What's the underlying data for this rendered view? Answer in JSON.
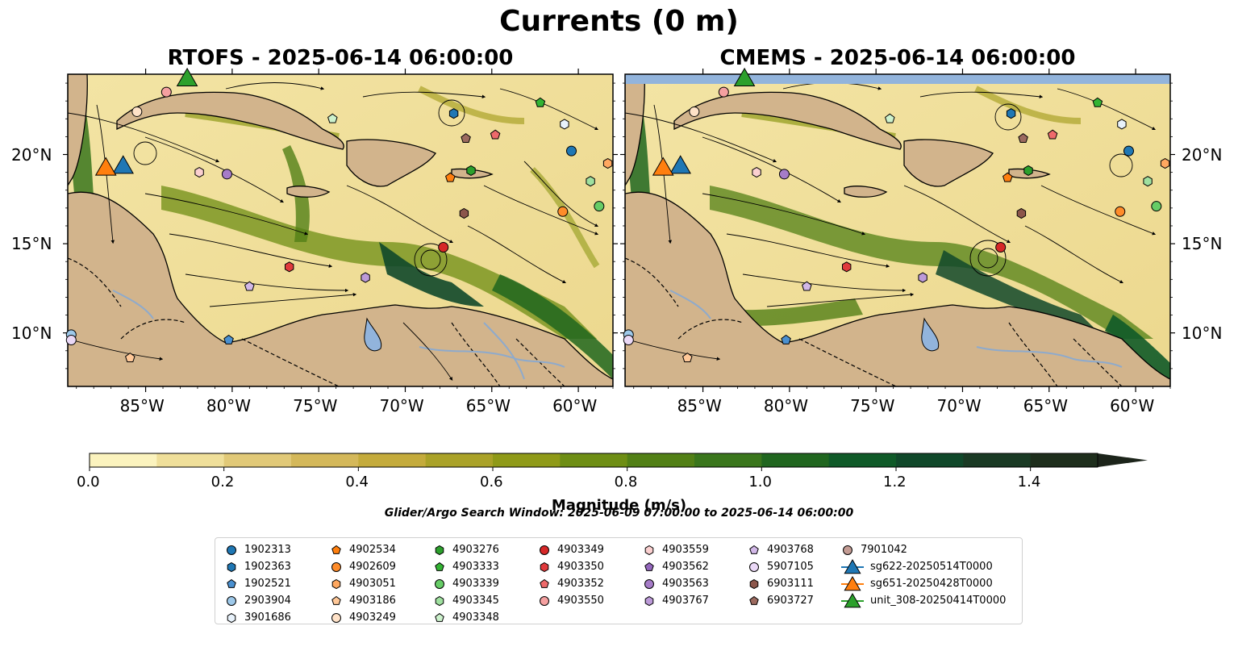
{
  "figure": {
    "title": "Currents (0 m)",
    "panels": [
      {
        "title": "RTOFS - 2025-06-14 06:00:00"
      },
      {
        "title": "CMEMS - 2025-06-14 06:00:00"
      }
    ],
    "lon_ticks": [
      "85°W",
      "80°W",
      "75°W",
      "70°W",
      "65°W",
      "60°W"
    ],
    "lat_ticks": [
      "20°N",
      "15°N",
      "10°N"
    ],
    "map_extent": {
      "lon": [
        -89.5,
        -58.0
      ],
      "lat": [
        7.0,
        24.5
      ]
    }
  },
  "colorbar": {
    "label": "Magnitude (m/s)",
    "ticks": [
      "0.0",
      "0.2",
      "0.4",
      "0.6",
      "0.8",
      "1.0",
      "1.2",
      "1.4"
    ],
    "range": [
      0.0,
      1.5
    ],
    "colors": [
      "#fbf3be",
      "#efdf9a",
      "#e1c978",
      "#d4b85a",
      "#c4ab3c",
      "#aaa228",
      "#8f9a18",
      "#6e8e14",
      "#528016",
      "#3a761c",
      "#20661f",
      "#0f5a28",
      "#10482a",
      "#1a3a24",
      "#1e2e1c"
    ]
  },
  "search_window": "Glider/Argo Search Window: 2025-06-09 07:00:00 to 2025-06-14 06:00:00",
  "legend": {
    "columns": [
      [
        {
          "label": "1902313",
          "marker": "circle",
          "color": "#1f77b4"
        },
        {
          "label": "1902363",
          "marker": "hexagon",
          "color": "#1f77b4"
        },
        {
          "label": "1902521",
          "marker": "pentagon",
          "color": "#4a90d0"
        },
        {
          "label": "2903904",
          "marker": "circle",
          "color": "#9ec9ea"
        },
        {
          "label": "3901686",
          "marker": "hexagon",
          "color": "#e8f2fb"
        }
      ],
      [
        {
          "label": "4902534",
          "marker": "pentagon",
          "color": "#ff7f0e"
        },
        {
          "label": "4902609",
          "marker": "circle",
          "color": "#ff8c2a"
        },
        {
          "label": "4903051",
          "marker": "hexagon",
          "color": "#ffa860"
        },
        {
          "label": "4903186",
          "marker": "pentagon",
          "color": "#ffc898"
        },
        {
          "label": "4903249",
          "marker": "circle",
          "color": "#ffe2c8"
        }
      ],
      [
        {
          "label": "4903276",
          "marker": "hexagon",
          "color": "#2ca02c"
        },
        {
          "label": "4903333",
          "marker": "pentagon",
          "color": "#33b433"
        },
        {
          "label": "4903339",
          "marker": "circle",
          "color": "#66cc66"
        },
        {
          "label": "4903345",
          "marker": "hexagon",
          "color": "#9fe09f"
        },
        {
          "label": "4903348",
          "marker": "pentagon",
          "color": "#cdf2cd"
        }
      ],
      [
        {
          "label": "4903349",
          "marker": "circle",
          "color": "#d62728"
        },
        {
          "label": "4903350",
          "marker": "hexagon",
          "color": "#e03a3c"
        },
        {
          "label": "4903352",
          "marker": "pentagon",
          "color": "#ee6a6b"
        },
        {
          "label": "4903550",
          "marker": "circle",
          "color": "#f5a0a0"
        }
      ],
      [
        {
          "label": "4903559",
          "marker": "hexagon",
          "color": "#fbd0d0"
        },
        {
          "label": "4903562",
          "marker": "pentagon",
          "color": "#9467bd"
        },
        {
          "label": "4903563",
          "marker": "circle",
          "color": "#a67cc8"
        },
        {
          "label": "4903767",
          "marker": "hexagon",
          "color": "#bc9ad8"
        }
      ],
      [
        {
          "label": "4903768",
          "marker": "pentagon",
          "color": "#d2b8e8"
        },
        {
          "label": "5907105",
          "marker": "circle",
          "color": "#ead8f6"
        },
        {
          "label": "6903111",
          "marker": "hexagon",
          "color": "#8c564b"
        },
        {
          "label": "6903727",
          "marker": "pentagon",
          "color": "#9c6a5f"
        }
      ],
      [
        {
          "label": "7901042",
          "marker": "circle",
          "color": "#c49c94"
        },
        {
          "label": "sg622-20250514T0000",
          "marker": "triangle",
          "color": "#1f77b4"
        },
        {
          "label": "sg651-20250428T0000",
          "marker": "triangle",
          "color": "#ff7f0e"
        },
        {
          "label": "unit_308-20250414T0000",
          "marker": "triangle",
          "color": "#2ca02c"
        }
      ]
    ]
  },
  "map_colors": {
    "land": "#d2b48c",
    "lake": "#92b4dc",
    "river": "#8eaacc",
    "no_data_band": "#92b4dc"
  },
  "markers": [
    {
      "id": "1902313",
      "lon": -60.4,
      "lat": 20.2
    },
    {
      "id": "1902363",
      "lon": -67.2,
      "lat": 22.3
    },
    {
      "id": "1902521",
      "lon": -80.2,
      "lat": 9.6
    },
    {
      "id": "2903904",
      "lon": -89.3,
      "lat": 9.9
    },
    {
      "id": "3901686",
      "lon": -60.8,
      "lat": 21.7
    },
    {
      "id": "4902534",
      "lon": -67.4,
      "lat": 18.7
    },
    {
      "id": "4902609",
      "lon": -60.9,
      "lat": 16.8
    },
    {
      "id": "4903051",
      "lon": -58.3,
      "lat": 19.5
    },
    {
      "id": "4903186",
      "lon": -85.9,
      "lat": 8.6
    },
    {
      "id": "4903249",
      "lon": -85.5,
      "lat": 22.4
    },
    {
      "id": "4903276",
      "lon": -66.2,
      "lat": 19.1
    },
    {
      "id": "4903333",
      "lon": -62.2,
      "lat": 22.9
    },
    {
      "id": "4903339",
      "lon": -58.8,
      "lat": 17.1
    },
    {
      "id": "4903345",
      "lon": -59.3,
      "lat": 18.5
    },
    {
      "id": "4903348",
      "lon": -74.2,
      "lat": 22.0
    },
    {
      "id": "4903349",
      "lon": -67.8,
      "lat": 14.8
    },
    {
      "id": "4903350",
      "lon": -76.7,
      "lat": 13.7
    },
    {
      "id": "4903352",
      "lon": -64.8,
      "lat": 21.1
    },
    {
      "id": "4903550",
      "lon": -83.8,
      "lat": 23.5
    },
    {
      "id": "4903559",
      "lon": -81.9,
      "lat": 19.0
    },
    {
      "id": "4903563",
      "lon": -80.3,
      "lat": 18.9
    },
    {
      "id": "4903767",
      "lon": -72.3,
      "lat": 13.1
    },
    {
      "id": "4903768",
      "lon": -79.0,
      "lat": 12.6
    },
    {
      "id": "5907105",
      "lon": -89.3,
      "lat": 9.6
    },
    {
      "id": "6903111",
      "lon": -66.6,
      "lat": 16.7
    },
    {
      "id": "6903727",
      "lon": -66.5,
      "lat": 20.9
    },
    {
      "id": "sg622-20250514T0000",
      "lon": -86.3,
      "lat": 19.4
    },
    {
      "id": "sg651-20250428T0000",
      "lon": -87.3,
      "lat": 19.3
    },
    {
      "id": "unit_308-20250414T0000",
      "lon": -82.6,
      "lat": 24.3
    }
  ]
}
